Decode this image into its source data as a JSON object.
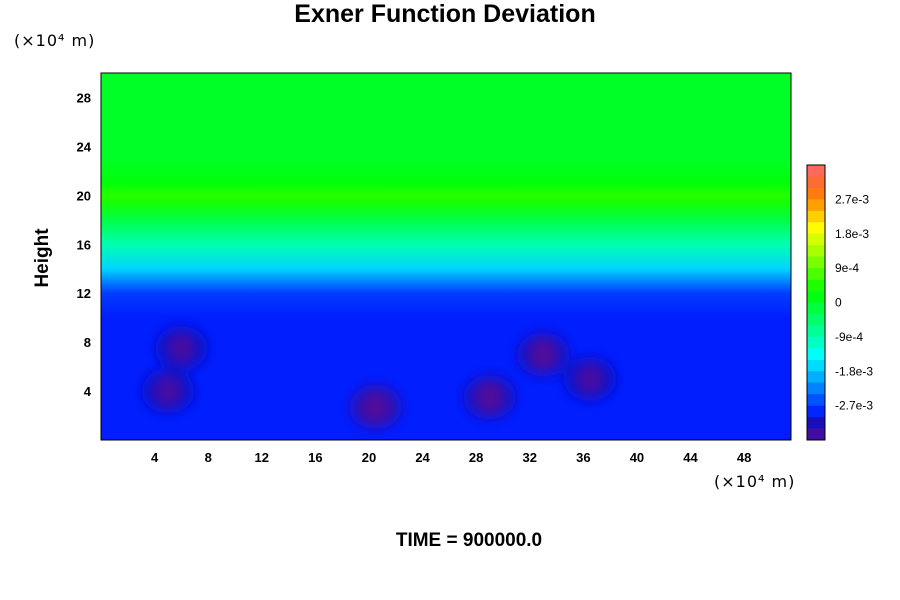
{
  "chart_data": {
    "type": "heatmap",
    "title": "Exner Function Deviation",
    "ylabel": "Height",
    "xlabel": "",
    "x_unit": "(×10⁴ m)",
    "y_unit": "(×10⁴ m)",
    "footer": "TIME = 900000.0",
    "xlim": [
      0,
      51.5
    ],
    "ylim": [
      0,
      30
    ],
    "x_ticks": [
      4,
      8,
      12,
      16,
      20,
      24,
      28,
      32,
      36,
      40,
      44,
      48
    ],
    "y_ticks": [
      4,
      8,
      12,
      16,
      20,
      24,
      28
    ],
    "colorbar": {
      "min": -0.0036,
      "max": 0.0036,
      "levels": 24,
      "tick_values": [
        0.0027,
        0.0018,
        0.0009,
        0,
        -0.0009,
        -0.0018,
        -0.0027
      ],
      "tick_labels": [
        "2.7e-3",
        "1.8e-3",
        "9e-4",
        "0",
        "-9e-4",
        "-1.8e-3",
        "-2.7e-3"
      ]
    },
    "vertical_profile": [
      {
        "height": 0,
        "value": -0.0029
      },
      {
        "height": 10,
        "value": -0.0029
      },
      {
        "height": 12,
        "value": -0.0027
      },
      {
        "height": 14,
        "value": -0.0017
      },
      {
        "height": 16,
        "value": -0.0009
      },
      {
        "height": 18,
        "value": -0.0002
      },
      {
        "height": 19.5,
        "value": 0.0004
      },
      {
        "height": 20,
        "value": 0.0005
      },
      {
        "height": 21,
        "value": 0.0002
      },
      {
        "height": 23,
        "value": 0.0
      },
      {
        "height": 30,
        "value": 0.0
      }
    ],
    "anomalies": [
      {
        "x": 20.5,
        "y": 2.7,
        "value": -0.0033
      },
      {
        "x": 29,
        "y": 3.5,
        "value": -0.0032
      },
      {
        "x": 33,
        "y": 7,
        "value": -0.0032
      },
      {
        "x": 6,
        "y": 7.5,
        "value": -0.0031
      },
      {
        "x": 5,
        "y": 4,
        "value": -0.0031
      },
      {
        "x": 36.5,
        "y": 5,
        "value": -0.0031
      }
    ],
    "grid": false
  }
}
